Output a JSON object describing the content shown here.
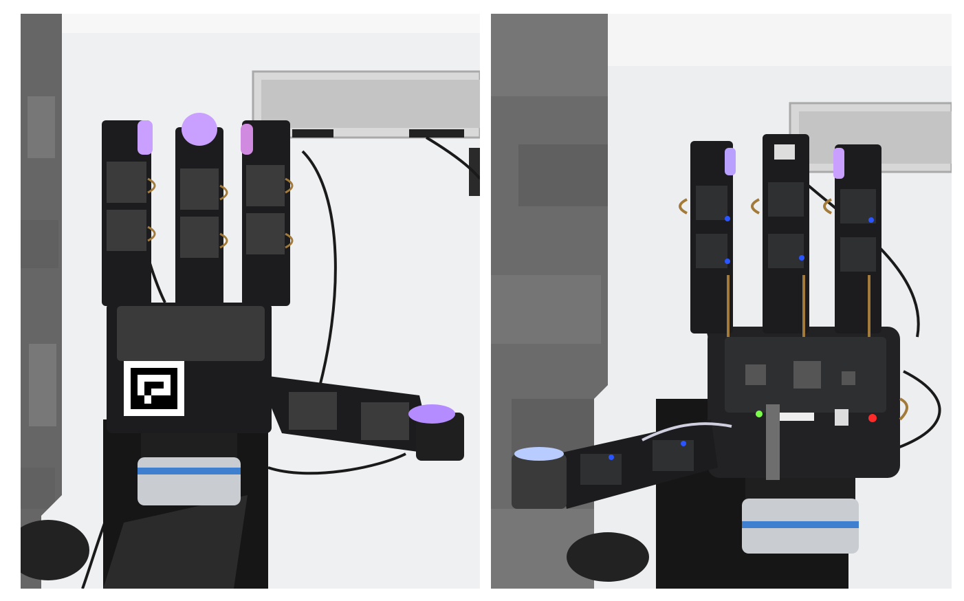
{
  "figure": {
    "panels": [
      {
        "id": "left",
        "subject": "robot-hand-palm-side"
      },
      {
        "id": "right",
        "subject": "robot-hand-back-side"
      }
    ],
    "colors": {
      "carpet": "#6f6f6f",
      "desk": "#eceef0",
      "robot_black": "#1c1c1e",
      "fingertip_glow": "#c9a0ff",
      "led_blue": "#2a55ff",
      "flex_cable": "#8a6a35",
      "wrist_silver": "#c8cbd0",
      "wrist_blue_ring": "#3f7fd0"
    }
  }
}
